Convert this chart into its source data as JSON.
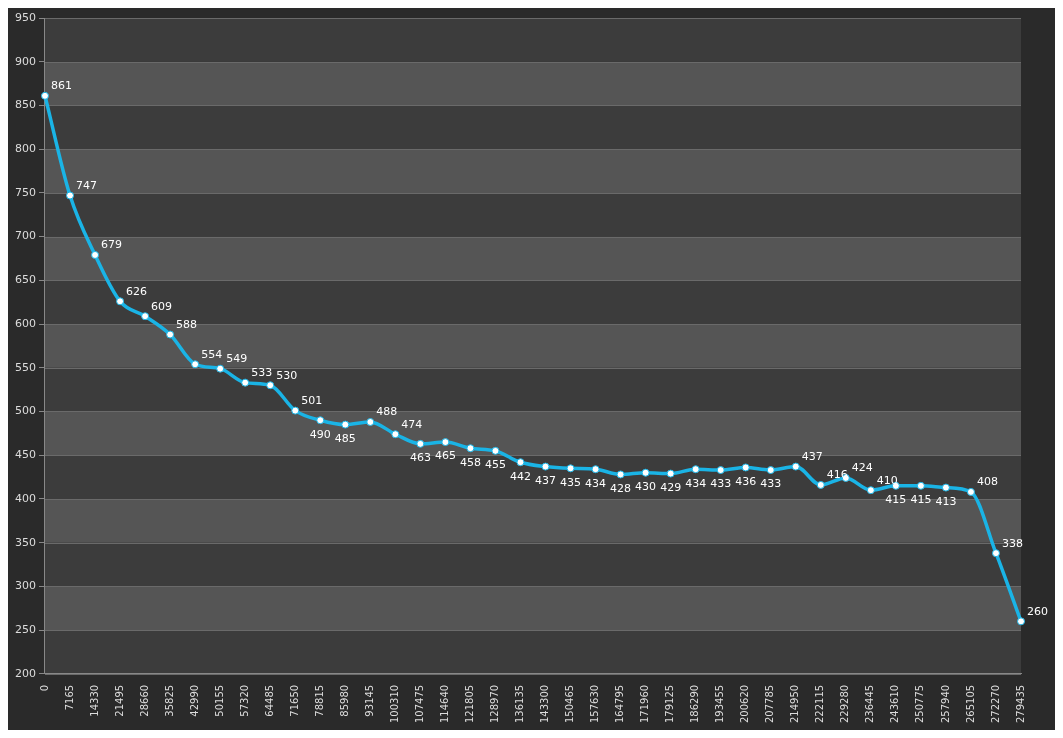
{
  "chart_data": {
    "type": "line",
    "categories": [
      "0",
      "7165",
      "14330",
      "21495",
      "28660",
      "35825",
      "42990",
      "50155",
      "57320",
      "64485",
      "71650",
      "78815",
      "85980",
      "93145",
      "100310",
      "107475",
      "114640",
      "121805",
      "128970",
      "136135",
      "143300",
      "150465",
      "157630",
      "164795",
      "171960",
      "179125",
      "186290",
      "193455",
      "200620",
      "207785",
      "214950",
      "222115",
      "229280",
      "236445",
      "243610",
      "250775",
      "257940",
      "265105",
      "272270",
      "279435"
    ],
    "series": [
      {
        "color": "#1ab4e6",
        "values": [
          861,
          747,
          679,
          626,
          609,
          588,
          554,
          549,
          533,
          530,
          501,
          490,
          485,
          488,
          474,
          463,
          465,
          458,
          455,
          442,
          437,
          435,
          434,
          428,
          430,
          429,
          434,
          433,
          436,
          433,
          437,
          416,
          424,
          410,
          415,
          415,
          413,
          408,
          338,
          260
        ]
      }
    ],
    "ylim": [
      200,
      950
    ],
    "yticks": [
      200,
      250,
      300,
      350,
      400,
      450,
      500,
      550,
      600,
      650,
      700,
      750,
      800,
      850,
      900,
      950
    ],
    "grid": "y",
    "legend": false,
    "marker": "circle",
    "line_style": "solid",
    "data_labels": true
  }
}
